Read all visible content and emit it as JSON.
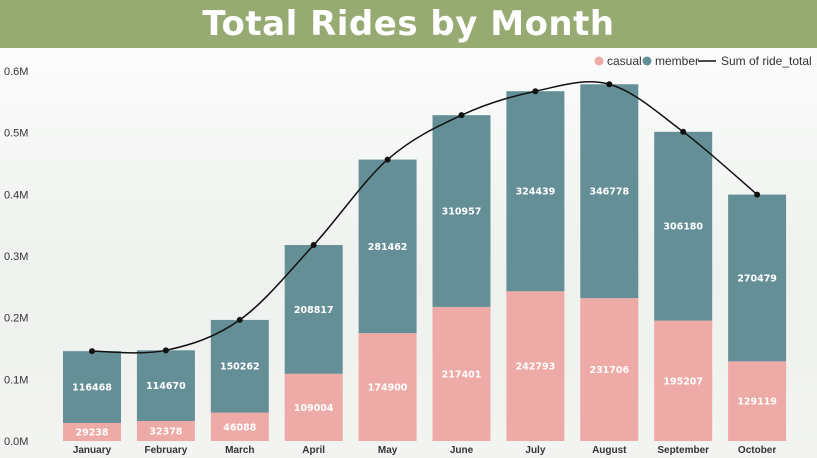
{
  "title": "Total Rides by Month",
  "colors": {
    "casual": "#eeaaa6",
    "member": "#658f96",
    "line": "#111111",
    "header": "#97aa72"
  },
  "chart_data": {
    "type": "bar",
    "stacked": true,
    "title": "Total Rides by Month",
    "categories": [
      "January",
      "February",
      "March",
      "April",
      "May",
      "June",
      "July",
      "August",
      "September",
      "October"
    ],
    "series": [
      {
        "name": "casual",
        "values": [
          29238,
          32378,
          46088,
          109004,
          174900,
          217401,
          242793,
          231706,
          195207,
          129119
        ]
      },
      {
        "name": "member",
        "values": [
          116468,
          114670,
          150262,
          208817,
          281462,
          310957,
          324439,
          346778,
          306180,
          270479
        ]
      }
    ],
    "line_series": {
      "name": "Sum of ride_total",
      "type": "line",
      "smooth": true
    },
    "y_ticks": [
      "0.0M",
      "0.1M",
      "0.2M",
      "0.3M",
      "0.4M",
      "0.5M",
      "0.6M"
    ],
    "ylim": [
      0,
      600000
    ],
    "legend_position": "top-right",
    "grid": false
  }
}
